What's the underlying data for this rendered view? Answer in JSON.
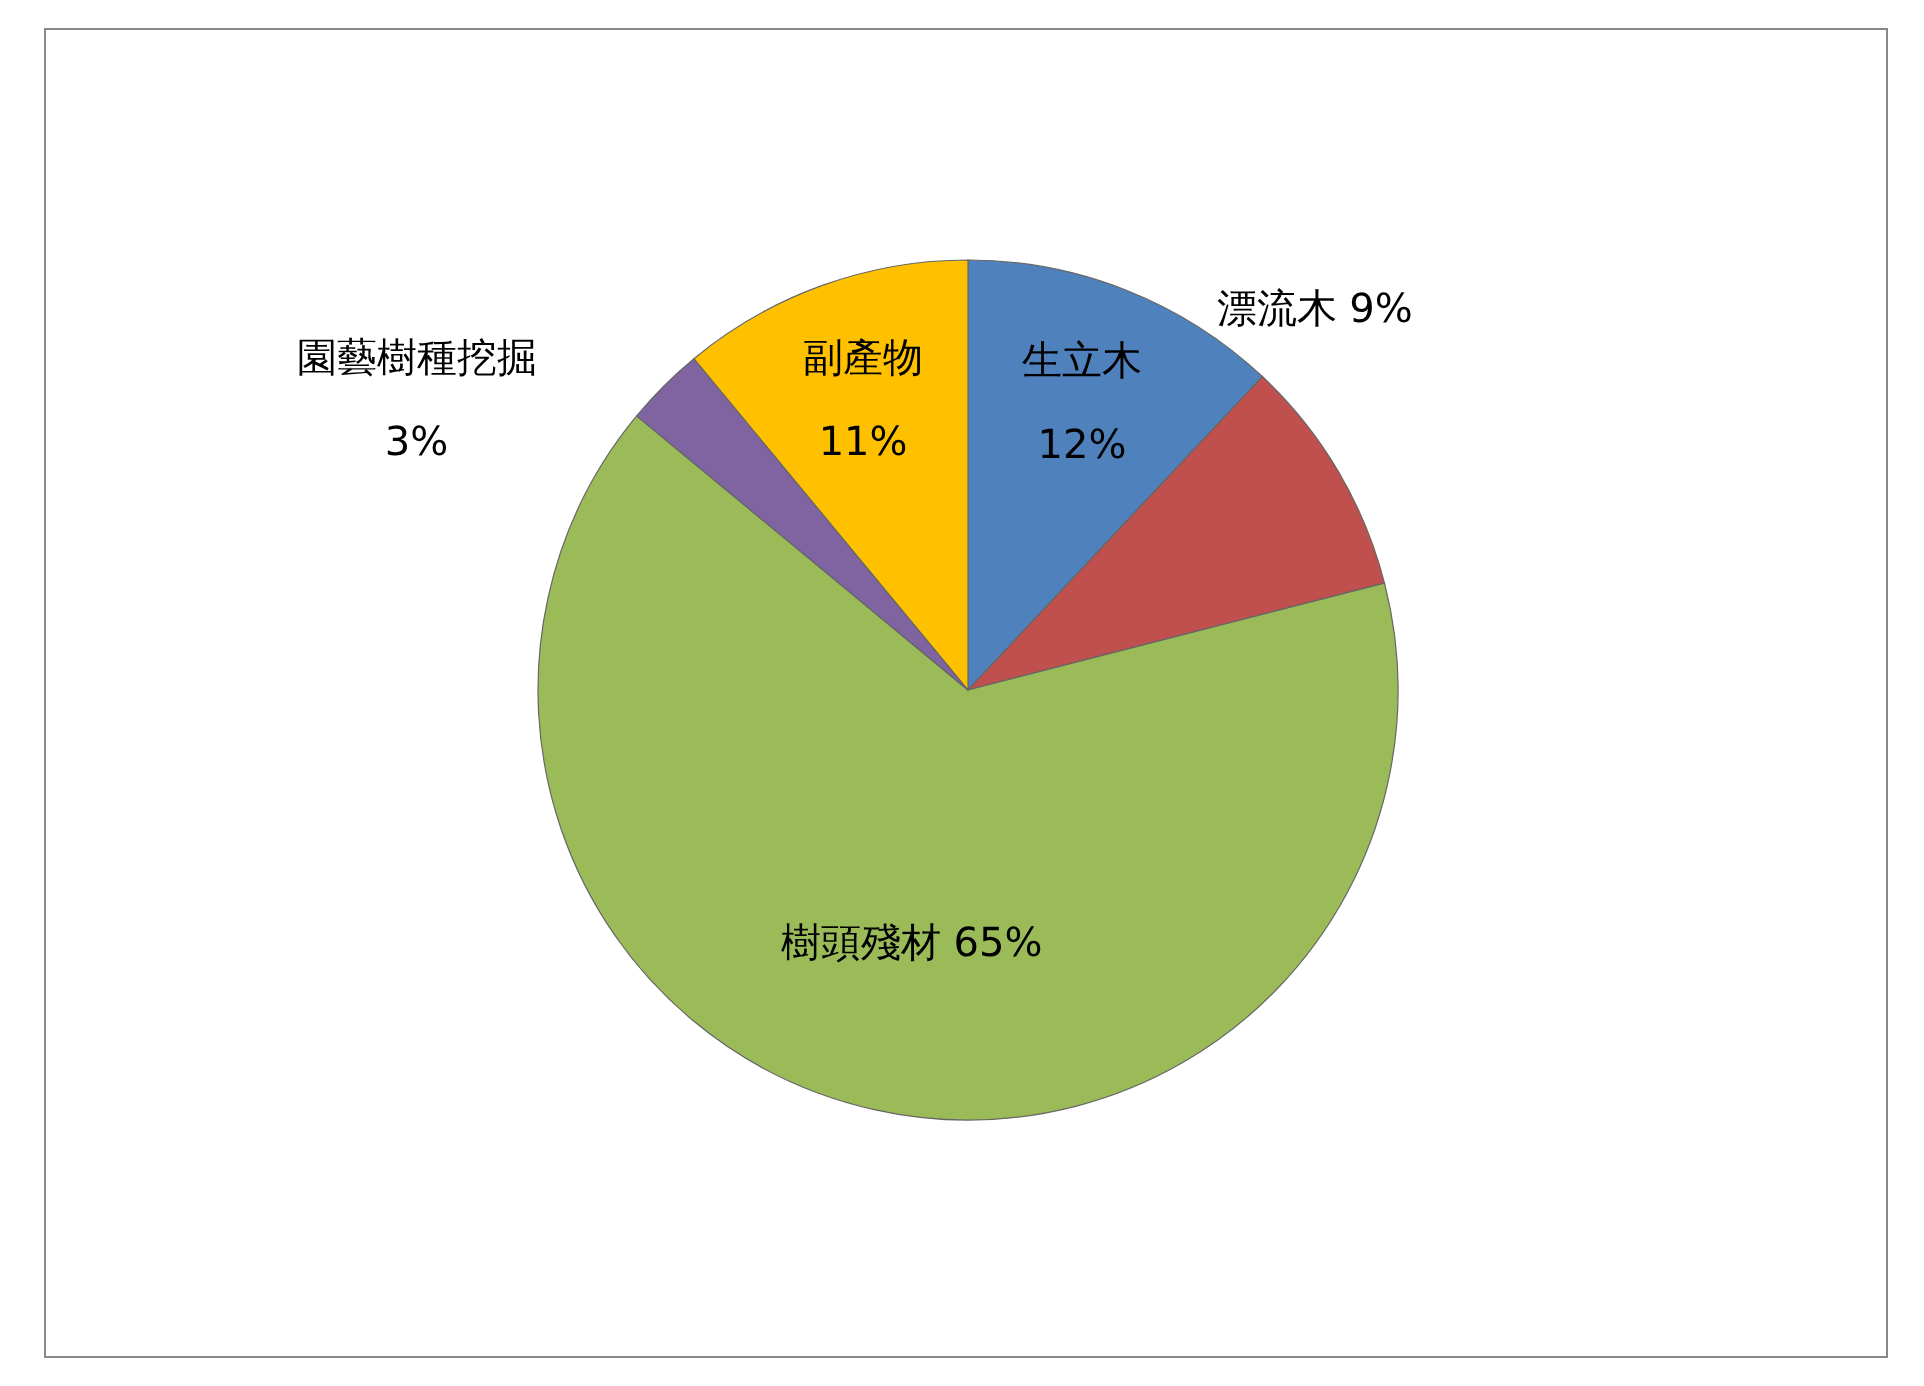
{
  "chart_data": {
    "type": "pie",
    "categories": [
      "生立木",
      "漂流木",
      "樹頭殘材",
      "園藝樹種挖掘",
      "副產物"
    ],
    "values": [
      12,
      9,
      65,
      3,
      11
    ],
    "value_labels": [
      "12%",
      "9%",
      "65%",
      "3%",
      "11%"
    ],
    "colors": [
      "#4f81bd",
      "#c0504d",
      "#9bbb59",
      "#8064a2",
      "#ffc000"
    ]
  }
}
